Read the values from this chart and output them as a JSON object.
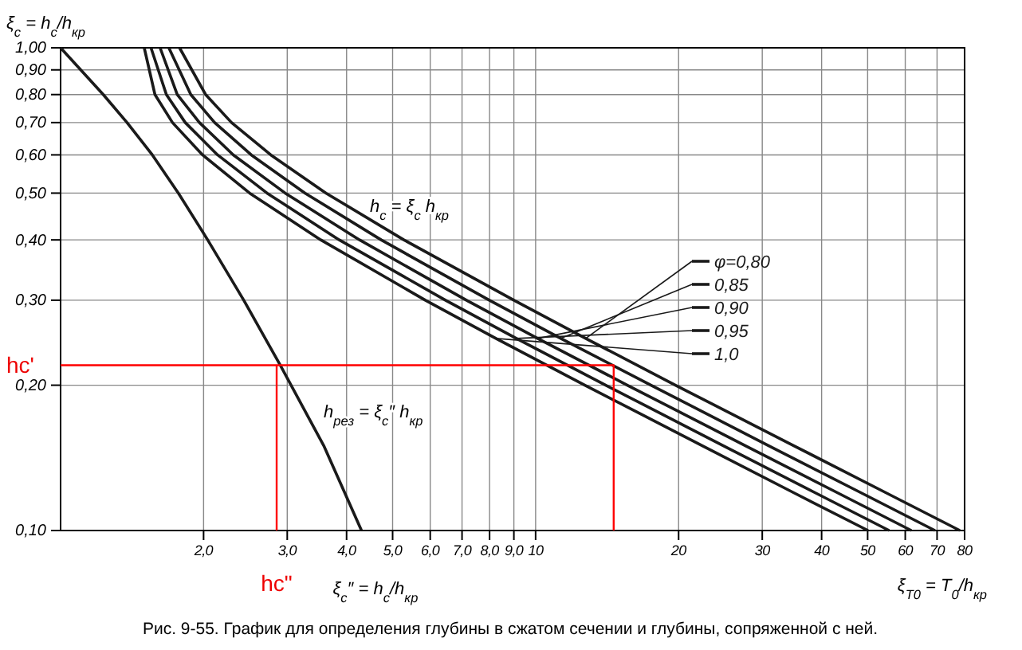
{
  "chart_data": {
    "type": "line",
    "title": "Рис. 9-55. График для определения глубины в сжатом сечении и глубины, сопряженной с ней.",
    "ylabel": "ξ$_{c}$ = h$_{c}$/h$_{кр}$",
    "xlabel": "ξ$_{c}$″ = h$_{c}$/h$_{кр}$",
    "log": "xy",
    "grid": true,
    "legend": "right",
    "marker": "none",
    "line_style": "solid",
    "xlim": [
      1,
      80
    ],
    "ylim": [
      0.1,
      1
    ],
    "xticks": [
      {
        "value": 2,
        "label": "2,0"
      },
      {
        "value": 3,
        "label": "3,0"
      },
      {
        "value": 4,
        "label": "4,0"
      },
      {
        "value": 5,
        "label": "5,0"
      },
      {
        "value": 6,
        "label": "6,0"
      },
      {
        "value": 7,
        "label": "7,0"
      },
      {
        "value": 8,
        "label": "8,0"
      },
      {
        "value": 9,
        "label": "9,0"
      },
      10,
      20,
      30,
      40,
      50,
      60,
      70,
      80
    ],
    "yticks": [
      {
        "value": 0.1,
        "label": "0,10"
      },
      {
        "value": 0.2,
        "label": "0,20"
      },
      {
        "value": 0.3,
        "label": "0,30"
      },
      {
        "value": 0.4,
        "label": "0,40"
      },
      {
        "value": 0.5,
        "label": "0,50"
      },
      {
        "value": 0.6,
        "label": "0,60"
      },
      {
        "value": 0.7,
        "label": "0,70"
      },
      {
        "value": 0.8,
        "label": "0,80"
      },
      {
        "value": 0.9,
        "label": "0,90"
      },
      {
        "value": 1,
        "label": "1,00"
      }
    ],
    "series": [
      {
        "color": "#1a1a1a",
        "x": [
          1,
          1.23,
          1.38,
          1.56,
          1.77,
          2.04,
          2.43,
          2.9,
          3.58,
          4.3
        ],
        "values": [
          1,
          0.8,
          0.7,
          0.6,
          0.5,
          0.4,
          0.3,
          0.22,
          0.15,
          0.1
        ]
      },
      {
        "name": "φ=0,80",
        "color": "#1a1a1a",
        "x": [
          1.78,
          2.02,
          2.29,
          2.77,
          3.62,
          5.28,
          9.0,
          12.75,
          19.7,
          34.9,
          54.4,
          78.2
        ],
        "values": [
          1,
          0.8,
          0.7,
          0.6,
          0.5,
          0.4,
          0.3,
          0.25,
          0.2,
          0.15,
          0.12,
          0.1
        ]
      },
      {
        "name": "0,85",
        "color": "#1a1a1a",
        "x": [
          1.69,
          1.88,
          2.11,
          2.52,
          3.27,
          4.73,
          7.99,
          11.3,
          17.5,
          30.9,
          48.2,
          69.3
        ],
        "values": [
          1,
          0.8,
          0.7,
          0.6,
          0.5,
          0.4,
          0.3,
          0.25,
          0.2,
          0.15,
          0.12,
          0.1
        ]
      },
      {
        "name": "0,90",
        "color": "#1a1a1a",
        "x": [
          1.62,
          1.76,
          1.96,
          2.31,
          2.97,
          4.26,
          7.15,
          10.1,
          15.6,
          27.6,
          43.0,
          61.8
        ],
        "values": [
          1,
          0.8,
          0.7,
          0.6,
          0.5,
          0.4,
          0.3,
          0.25,
          0.2,
          0.15,
          0.12,
          0.1
        ]
      },
      {
        "name": "0,95",
        "color": "#1a1a1a",
        "x": [
          1.55,
          1.67,
          1.83,
          2.14,
          2.72,
          3.86,
          6.46,
          9.11,
          14.05,
          24.8,
          38.6,
          55.5
        ],
        "values": [
          1,
          0.8,
          0.7,
          0.6,
          0.5,
          0.4,
          0.3,
          0.25,
          0.2,
          0.15,
          0.12,
          0.1
        ]
      },
      {
        "name": "1,0",
        "color": "#1a1a1a",
        "x": [
          1.5,
          1.58,
          1.72,
          1.99,
          2.5,
          3.53,
          5.86,
          8.25,
          12.7,
          22.4,
          34.8,
          50.1
        ],
        "values": [
          1,
          0.8,
          0.7,
          0.6,
          0.5,
          0.4,
          0.3,
          0.25,
          0.2,
          0.15,
          0.12,
          0.1
        ]
      },
      {
        "color": "#ff0000",
        "x": [
          1,
          14.6,
          14.6
        ],
        "values": [
          0.22,
          0.22,
          0.1
        ]
      },
      {
        "color": "#ff0000",
        "x": [
          2.85,
          2.85
        ],
        "values": [
          0.1,
          0.22
        ]
      }
    ],
    "annotations": [
      "h$_{c}$ = ξ$_{c}$ h$_{кр}$",
      "h$_{рез}$ = ξ$_{c}$″ h$_{кр}$",
      {
        "text": "hc'",
        "x": 1,
        "y": 0.22
      },
      {
        "text": "hc\"",
        "x": 2.85,
        "y": 0.1
      },
      {
        "text": "ξ$_{T0}$ = T$_{0}$/h$_{кр}$",
        "x": 80,
        "y": 0.1
      }
    ]
  }
}
